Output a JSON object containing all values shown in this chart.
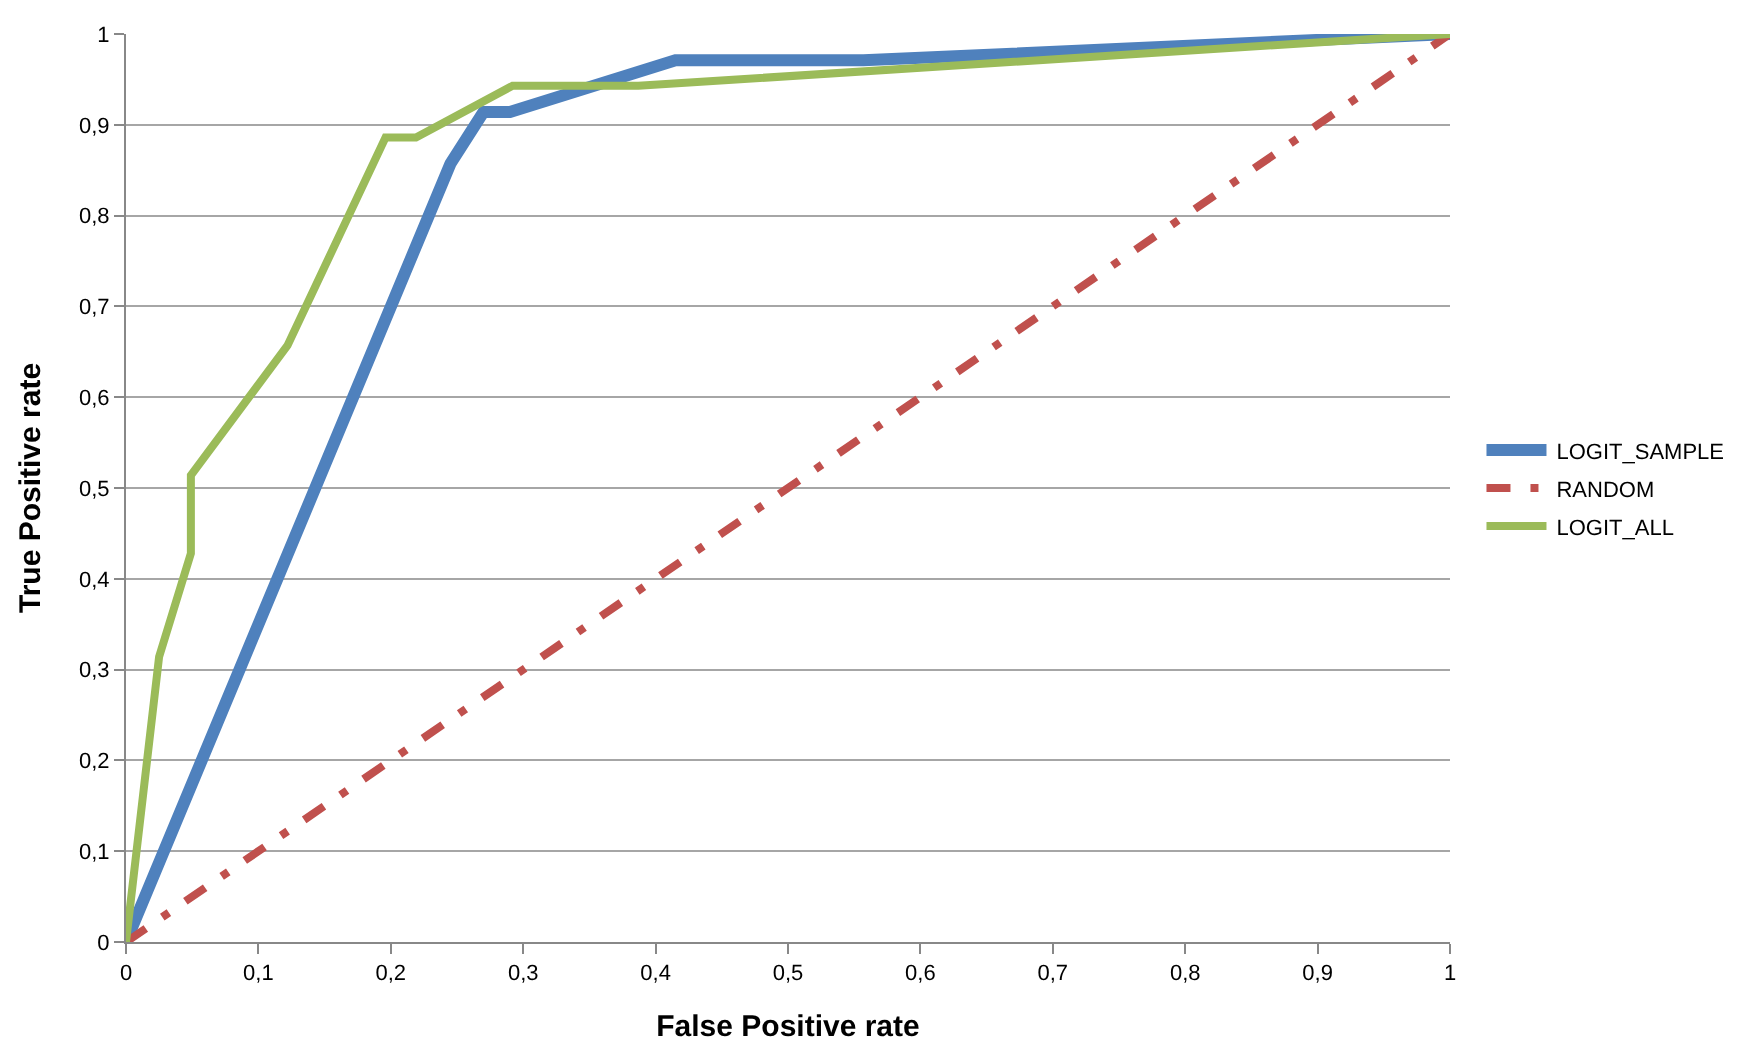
{
  "chart_data": {
    "type": "line",
    "xlabel": "False Positive rate",
    "ylabel": "True Positive rate",
    "series": [
      {
        "name": "LOGIT_SAMPLE",
        "color": "#4f81bd",
        "x": [
          0,
          0.245,
          0.27,
          0.29,
          0.415,
          0.557,
          1
        ],
        "values": [
          0,
          0.857,
          0.914,
          0.914,
          0.971,
          0.971,
          1
        ]
      },
      {
        "name": "RANDOM",
        "color": "#c0504d",
        "line_style": "dashdot",
        "x": [
          0,
          1
        ],
        "values": [
          0,
          1
        ]
      },
      {
        "name": "LOGIT_ALL",
        "color": "#9bbb59",
        "x": [
          0,
          0.025,
          0.049,
          0.049,
          0.122,
          0.196,
          0.219,
          0.292,
          0.387,
          1
        ],
        "values": [
          0,
          0.314,
          0.428,
          0.514,
          0.657,
          0.886,
          0.886,
          0.943,
          0.943,
          1
        ]
      }
    ],
    "xlim": [
      0,
      1
    ],
    "ylim": [
      0,
      1
    ],
    "xticks": [
      0,
      {
        "value": 0.1,
        "label": "0,1"
      },
      {
        "value": 0.2,
        "label": "0,2"
      },
      {
        "value": 0.3,
        "label": "0,3"
      },
      {
        "value": 0.4,
        "label": "0,4"
      },
      {
        "value": 0.5,
        "label": "0,5"
      },
      {
        "value": 0.6,
        "label": "0,6"
      },
      {
        "value": 0.7,
        "label": "0,7"
      },
      {
        "value": 0.8,
        "label": "0,8"
      },
      {
        "value": 0.9,
        "label": "0,9"
      },
      1
    ],
    "yticks": [
      0,
      {
        "value": 0.1,
        "label": "0,1"
      },
      {
        "value": 0.2,
        "label": "0,2"
      },
      {
        "value": 0.3,
        "label": "0,3"
      },
      {
        "value": 0.4,
        "label": "0,4"
      },
      {
        "value": 0.5,
        "label": "0,5"
      },
      {
        "value": 0.6,
        "label": "0,6"
      },
      {
        "value": 0.7,
        "label": "0,7"
      },
      {
        "value": 0.8,
        "label": "0,8"
      },
      {
        "value": 0.9,
        "label": "0,9"
      },
      1
    ],
    "grid": "y",
    "legend": "right",
    "marker": "none",
    "line_style": "solid"
  }
}
